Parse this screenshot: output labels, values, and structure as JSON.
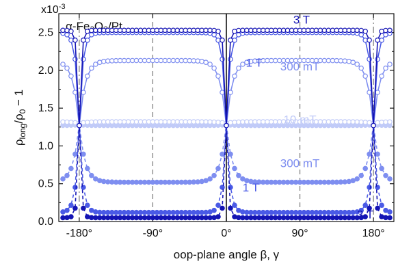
{
  "chart_data": {
    "type": "scatter",
    "title": "",
    "sample_label": "α-Fe₂O₃/Pt",
    "xlabel": "oop-plane angle β, γ",
    "ylabel_main": "ρ",
    "ylabel_sub1": "long",
    "ylabel_mid": "/ρ",
    "ylabel_sub2": "0",
    "ylabel_end": " − 1",
    "y_multiplier": "x10",
    "y_multiplier_exp": "-3",
    "xlim": [
      -205,
      205
    ],
    "ylim": [
      0.0,
      2.75
    ],
    "xticks": [
      -180,
      -90,
      0,
      90,
      180
    ],
    "xtick_labels": [
      "-180°",
      "-90°",
      "0°",
      "90°",
      "180°"
    ],
    "yticks": [
      0.0,
      0.5,
      1.0,
      1.5,
      2.0,
      2.5
    ],
    "ytick_labels": [
      "0.0",
      "0.5",
      "1.0",
      "1.5",
      "2.0",
      "2.5"
    ],
    "grid": false,
    "reference_lines": [
      {
        "x": 0,
        "style": "solid"
      },
      {
        "x": -180,
        "style": "dash-dot"
      },
      {
        "x": 180,
        "style": "dash-dot"
      },
      {
        "x": -90,
        "style": "dashed"
      },
      {
        "x": 90,
        "style": "dashed"
      }
    ],
    "colors": {
      "field_3T": "#1414b4",
      "field_1T": "#4a5ae6",
      "field_300mT": "#7e8ef0",
      "field_10mT": "#c1cbf8"
    },
    "annotations": [
      {
        "text": "3 T",
        "color": "#1414b4"
      },
      {
        "text": "1 T",
        "color": "#4a5ae6"
      },
      {
        "text": "300 mT",
        "color": "#7e8ef0"
      },
      {
        "text": "10 mT",
        "color": "#c1cbf8"
      },
      {
        "text": "300 mT",
        "color": "#7e8ef0"
      },
      {
        "text": "1 T",
        "color": "#4a5ae6"
      },
      {
        "text": "3 T",
        "color": "#1414b4"
      }
    ],
    "series": [
      {
        "field": "3 T",
        "geometry": "beta",
        "marker": "open",
        "color": "#1414b4",
        "base": 1.27,
        "amplitude": 1.26,
        "width": 2.2
      },
      {
        "field": "1 T",
        "geometry": "beta",
        "marker": "open",
        "color": "#4a5ae6",
        "base": 1.27,
        "amplitude": 1.23,
        "width": 4.0
      },
      {
        "field": "300 mT",
        "geometry": "beta",
        "marker": "open",
        "color": "#7e8ef0",
        "base": 1.27,
        "amplitude": 0.86,
        "width": 7.0
      },
      {
        "field": "10 mT",
        "geometry": "beta",
        "marker": "open",
        "color": "#c1cbf8",
        "base": 1.3,
        "amplitude": 0.02,
        "width": 9.0
      },
      {
        "field": "3 T",
        "geometry": "gamma",
        "marker": "filled",
        "color": "#1414b4",
        "base": 1.28,
        "amplitude": -1.23,
        "width": 2.2
      },
      {
        "field": "1 T",
        "geometry": "gamma",
        "marker": "filled",
        "color": "#4a5ae6",
        "base": 1.28,
        "amplitude": -1.16,
        "width": 4.0
      },
      {
        "field": "300 mT",
        "geometry": "gamma",
        "marker": "filled",
        "color": "#7e8ef0",
        "base": 1.28,
        "amplitude": -0.76,
        "width": 7.0
      },
      {
        "field": "10 mT",
        "geometry": "gamma",
        "marker": "filled",
        "color": "#c1cbf8",
        "base": 1.28,
        "amplitude": -0.01,
        "width": 9.0
      }
    ],
    "x_start": -200,
    "x_end": 200,
    "x_step": 5
  }
}
